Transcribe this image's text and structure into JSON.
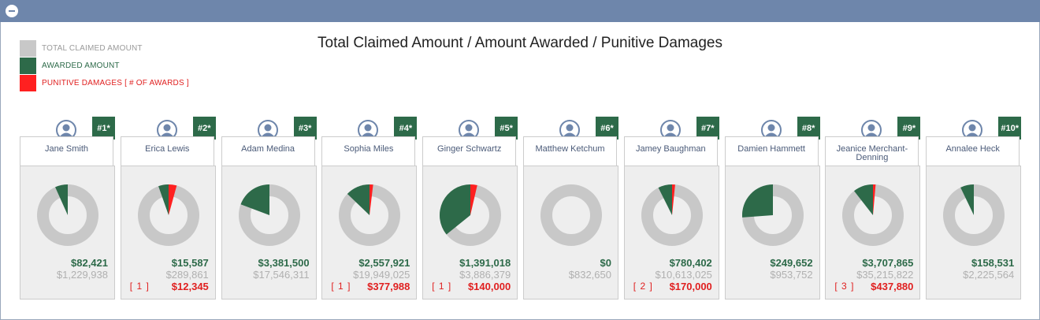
{
  "title": "Total Claimed Amount / Amount Awarded / Punitive Damages",
  "colors": {
    "claimed": "#c8c8c8",
    "awarded": "#2d6a49",
    "punitive": "#ff2020",
    "header": "#6e86ab"
  },
  "legend": [
    {
      "label": "TOTAL CLAIMED AMOUNT",
      "color": "#c8c8c8",
      "text_color": "#9a9a9a"
    },
    {
      "label": "AWARDED AMOUNT",
      "color": "#2d6a49",
      "text_color": "#2d6a49"
    },
    {
      "label": "PUNITIVE DAMAGES [ # OF AWARDS ]",
      "color": "#ff2020",
      "text_color": "#e02020"
    }
  ],
  "chart_data": {
    "type": "pie",
    "title": "Total Claimed Amount / Amount Awarded / Punitive Damages",
    "series_names": [
      "TOTAL CLAIMED AMOUNT",
      "AWARDED AMOUNT",
      "PUNITIVE DAMAGES"
    ],
    "items": [
      {
        "rank": "#1*",
        "name": "Jane Smith",
        "awarded": 82421,
        "claimed": 1229938,
        "punitive": 0,
        "awarded_text": "$82,421",
        "claimed_text": "$1,229,938",
        "punitive_text": "",
        "punitive_count": ""
      },
      {
        "rank": "#2*",
        "name": "Erica Lewis",
        "awarded": 15587,
        "claimed": 289861,
        "punitive": 12345,
        "awarded_text": "$15,587",
        "claimed_text": "$289,861",
        "punitive_text": "$12,345",
        "punitive_count": "[ 1 ]"
      },
      {
        "rank": "#3*",
        "name": "Adam Medina",
        "awarded": 3381500,
        "claimed": 17546311,
        "punitive": 0,
        "awarded_text": "$3,381,500",
        "claimed_text": "$17,546,311",
        "punitive_text": "",
        "punitive_count": ""
      },
      {
        "rank": "#4*",
        "name": "Sophia Miles",
        "awarded": 2557921,
        "claimed": 19949025,
        "punitive": 377988,
        "awarded_text": "$2,557,921",
        "claimed_text": "$19,949,025",
        "punitive_text": "$377,988",
        "punitive_count": "[ 1 ]"
      },
      {
        "rank": "#5*",
        "name": "Ginger Schwartz",
        "awarded": 1391018,
        "claimed": 3886379,
        "punitive": 140000,
        "awarded_text": "$1,391,018",
        "claimed_text": "$3,886,379",
        "punitive_text": "$140,000",
        "punitive_count": "[ 1 ]"
      },
      {
        "rank": "#6*",
        "name": "Matthew Ketchum",
        "awarded": 0,
        "claimed": 832650,
        "punitive": 0,
        "awarded_text": "$0",
        "claimed_text": "$832,650",
        "punitive_text": "",
        "punitive_count": ""
      },
      {
        "rank": "#7*",
        "name": "Jamey Baughman",
        "awarded": 780402,
        "claimed": 10613025,
        "punitive": 170000,
        "awarded_text": "$780,402",
        "claimed_text": "$10,613,025",
        "punitive_text": "$170,000",
        "punitive_count": "[ 2 ]"
      },
      {
        "rank": "#8*",
        "name": "Damien Hammett",
        "awarded": 249652,
        "claimed": 953752,
        "punitive": 0,
        "awarded_text": "$249,652",
        "claimed_text": "$953,752",
        "punitive_text": "",
        "punitive_count": ""
      },
      {
        "rank": "#9*",
        "name": "Jeanice Merchant-Denning",
        "awarded": 3707865,
        "claimed": 35215822,
        "punitive": 437880,
        "awarded_text": "$3,707,865",
        "claimed_text": "$35,215,822",
        "punitive_text": "$437,880",
        "punitive_count": "[ 3 ]"
      },
      {
        "rank": "#10*",
        "name": "Annalee Heck",
        "awarded": 158531,
        "claimed": 2225564,
        "punitive": 0,
        "awarded_text": "$158,531",
        "claimed_text": "$2,225,564",
        "punitive_text": "",
        "punitive_count": ""
      }
    ]
  }
}
